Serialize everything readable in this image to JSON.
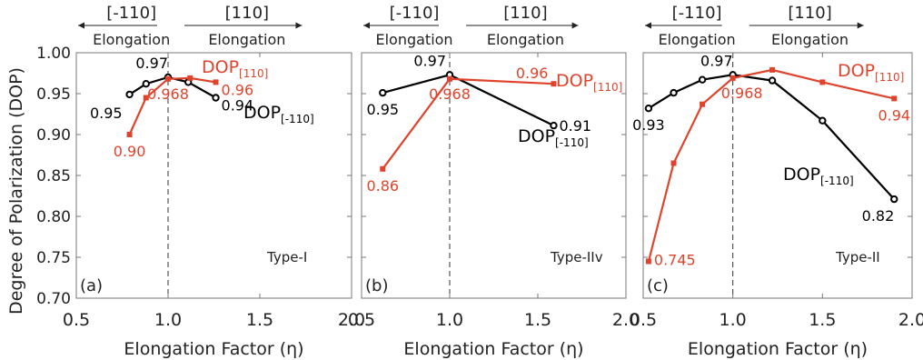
{
  "figure": {
    "ylabel": "Degree of Polarization (DOP)",
    "xlabel": "Elongation Factor (η)"
  },
  "chart_data": [
    {
      "type": "line",
      "panel": "(a)",
      "label": "Type-I",
      "xlim": [
        0.5,
        2.0
      ],
      "ylim": [
        0.7,
        1.0
      ],
      "x_ticks": [
        "0.5",
        "1.0",
        "1.5",
        "2.0"
      ],
      "y_ticks": [
        "0.70",
        "0.75",
        "0.80",
        "0.85",
        "0.90",
        "0.95",
        "1.00"
      ],
      "xlabel": "Elongation Factor (η)",
      "ylabel": "Degree of Polarization (DOP)",
      "top_left_label": [
        "[-110]",
        "Elongation"
      ],
      "top_right_label": [
        "[110]",
        "Elongation"
      ],
      "series": [
        {
          "name": "DOP[-110]",
          "name_main": "DOP",
          "name_sub": "[-110]",
          "color": "#000000",
          "marker": "circle",
          "points": [
            [
              0.79,
              0.949
            ],
            [
              0.88,
              0.962
            ],
            [
              1.0,
              0.97
            ],
            [
              1.11,
              0.964
            ],
            [
              1.26,
              0.945
            ]
          ]
        },
        {
          "name": "DOP[110]",
          "name_main": "DOP",
          "name_sub": "[110]",
          "color": "#e0432c",
          "marker": "square",
          "points": [
            [
              0.79,
              0.9
            ],
            [
              0.88,
              0.945
            ],
            [
              1.0,
              0.968
            ],
            [
              1.12,
              0.969
            ],
            [
              1.26,
              0.964
            ]
          ]
        }
      ],
      "annotations": [
        {
          "text": "0.97",
          "color": "#000000"
        },
        {
          "text": "0.95",
          "color": "#000000"
        },
        {
          "text": "0.94",
          "color": "#000000"
        },
        {
          "text": "0.968",
          "color": "#e0432c"
        },
        {
          "text": "0.96",
          "color": "#e0432c"
        },
        {
          "text": "0.90",
          "color": "#e0432c"
        }
      ]
    },
    {
      "type": "line",
      "panel": "(b)",
      "label": "Type-IIv",
      "xlim": [
        0.5,
        2.0
      ],
      "ylim": [
        0.7,
        1.0
      ],
      "x_ticks": [
        "0.5",
        "1.0",
        "1.5",
        "2.0"
      ],
      "xlabel": "Elongation Factor (η)",
      "top_left_label": [
        "[-110]",
        "Elongation"
      ],
      "top_right_label": [
        "[110]",
        "Elongation"
      ],
      "series": [
        {
          "name": "DOP[-110]",
          "name_main": "DOP",
          "name_sub": "[-110]",
          "color": "#000000",
          "marker": "circle",
          "points": [
            [
              0.62,
              0.951
            ],
            [
              1.0,
              0.973
            ],
            [
              1.59,
              0.911
            ]
          ]
        },
        {
          "name": "DOP[110]",
          "name_main": "DOP",
          "name_sub": "[110]",
          "color": "#e0432c",
          "marker": "square",
          "points": [
            [
              0.62,
              0.858
            ],
            [
              1.0,
              0.968
            ],
            [
              1.59,
              0.962
            ]
          ]
        }
      ],
      "annotations": [
        {
          "text": "0.97",
          "color": "#000000"
        },
        {
          "text": "0.95",
          "color": "#000000"
        },
        {
          "text": "0.91",
          "color": "#000000"
        },
        {
          "text": "0.968",
          "color": "#e0432c"
        },
        {
          "text": "0.96",
          "color": "#e0432c"
        },
        {
          "text": "0.86",
          "color": "#e0432c"
        }
      ]
    },
    {
      "type": "line",
      "panel": "(c)",
      "label": "Type-II",
      "xlim": [
        0.5,
        2.0
      ],
      "ylim": [
        0.7,
        1.0
      ],
      "x_ticks": [
        "0.5",
        "1.0",
        "1.5",
        "2.0"
      ],
      "xlabel": "Elongation Factor (η)",
      "top_left_label": [
        "[-110]",
        "Elongation"
      ],
      "top_right_label": [
        "[110]",
        "Elongation"
      ],
      "series": [
        {
          "name": "DOP[-110]",
          "name_main": "DOP",
          "name_sub": "[-110]",
          "color": "#000000",
          "marker": "circle",
          "points": [
            [
              0.53,
              0.932
            ],
            [
              0.67,
              0.951
            ],
            [
              0.83,
              0.967
            ],
            [
              1.0,
              0.973
            ],
            [
              1.22,
              0.966
            ],
            [
              1.5,
              0.917
            ],
            [
              1.9,
              0.821
            ]
          ]
        },
        {
          "name": "DOP[110]",
          "name_main": "DOP",
          "name_sub": "[110]",
          "color": "#e0432c",
          "marker": "square",
          "points": [
            [
              0.53,
              0.745
            ],
            [
              0.67,
              0.865
            ],
            [
              0.83,
              0.937
            ],
            [
              1.0,
              0.969
            ],
            [
              1.22,
              0.979
            ],
            [
              1.5,
              0.964
            ],
            [
              1.9,
              0.944
            ]
          ]
        }
      ],
      "annotations": [
        {
          "text": "0.97",
          "color": "#000000"
        },
        {
          "text": "0.93",
          "color": "#000000"
        },
        {
          "text": "0.82",
          "color": "#000000"
        },
        {
          "text": "0.968",
          "color": "#e0432c"
        },
        {
          "text": "0.94",
          "color": "#e0432c"
        },
        {
          "text": "0.745",
          "color": "#e0432c"
        }
      ]
    }
  ]
}
